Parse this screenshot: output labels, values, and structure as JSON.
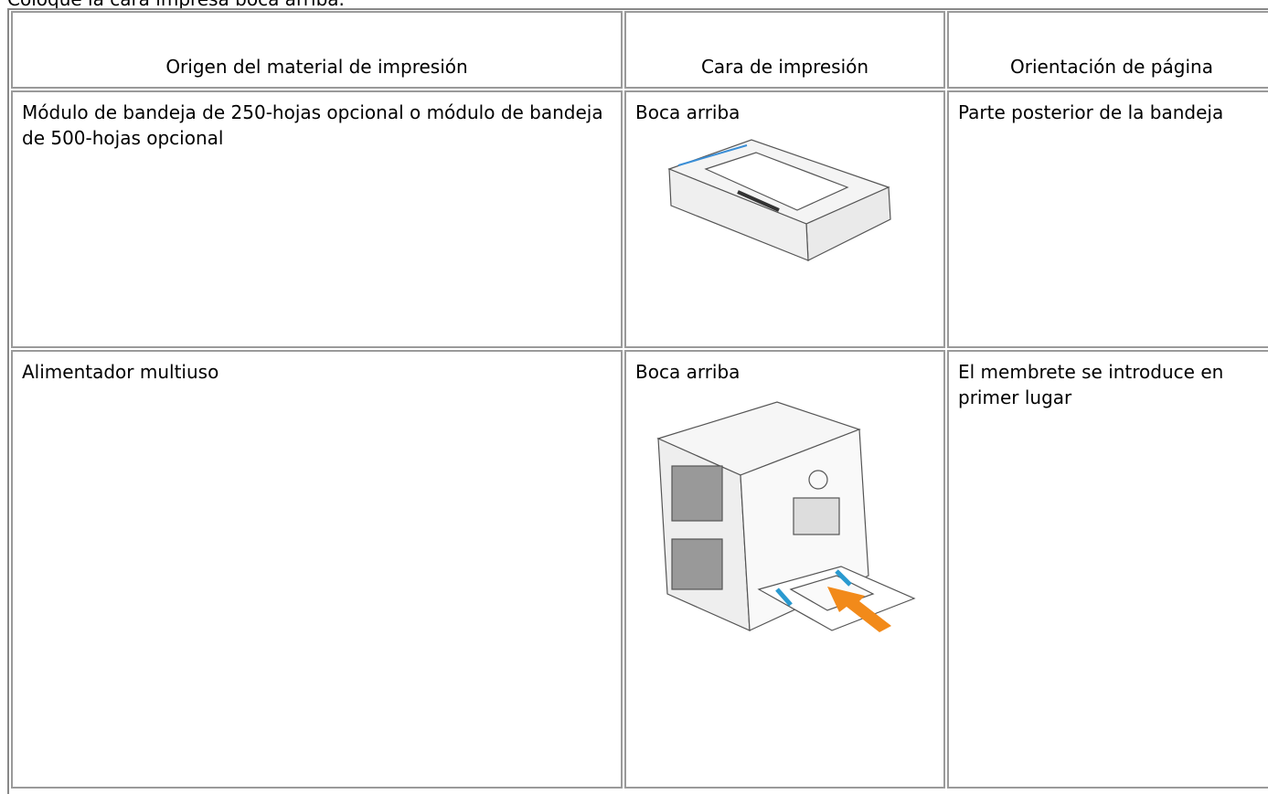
{
  "intro": "Coloque la cara impresa boca arriba.",
  "table": {
    "header": [
      "Origen del material de impresión",
      "Cara de impresión",
      "Orientación de página"
    ],
    "rows": [
      [
        "Módulo de bandeja de 250-hojas opcional o módulo de bandeja de 500-hojas opcional",
        "Boca arriba",
        "Parte posterior de la bandeja"
      ],
      [
        "Alimentador multiuso",
        "Boca arriba",
        "El membrete se introduce en primer lugar"
      ]
    ]
  }
}
